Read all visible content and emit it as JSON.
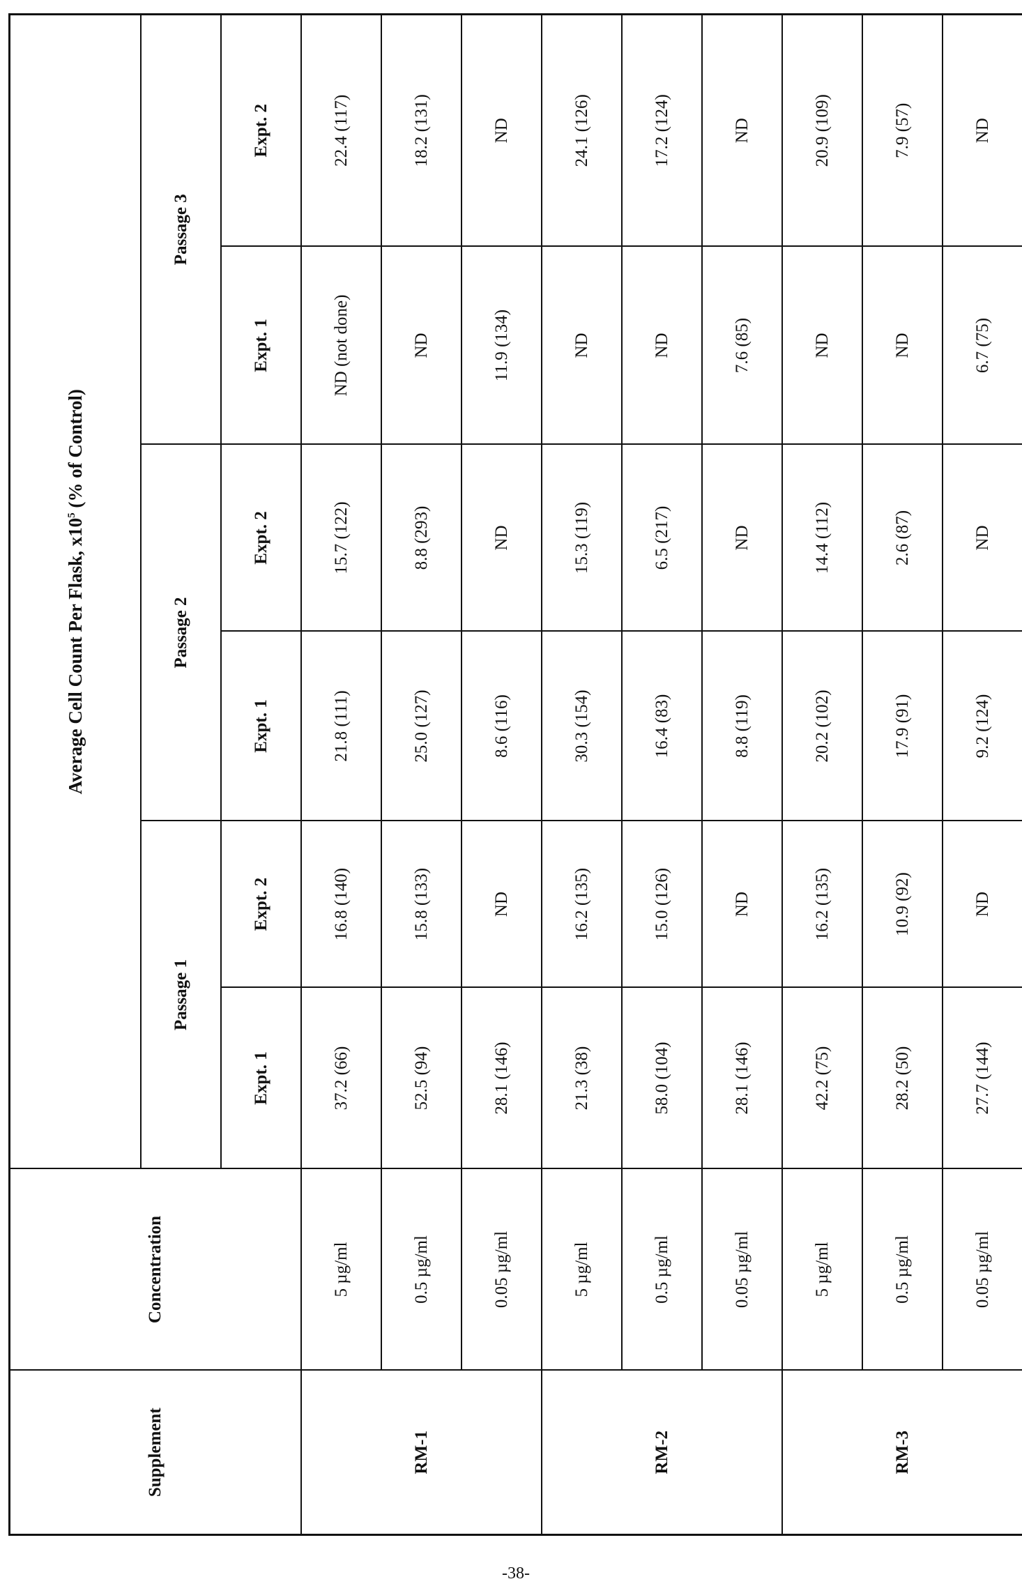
{
  "table": {
    "title": "Average Cell Count Per Flask, x10",
    "title_exp": "5",
    "title_suffix": " (% of Control)",
    "col_supplement": "Supplement",
    "col_concentration": "Concentration",
    "passages": [
      "Passage 1",
      "Passage 2",
      "Passage 3"
    ],
    "expts": [
      "Expt. 1",
      "Expt. 2"
    ],
    "groups": [
      {
        "supplement": "RM-1",
        "rows": [
          {
            "concentration": "5 µg/ml",
            "values": [
              "37.2 (66)",
              "16.8 (140)",
              "21.8 (111)",
              "15.7 (122)",
              "ND (not done)",
              "22.4 (117)"
            ]
          },
          {
            "concentration": "0.5 µg/ml",
            "values": [
              "52.5 (94)",
              "15.8 (133)",
              "25.0 (127)",
              "8.8 (293)",
              "ND",
              "18.2 (131)"
            ]
          },
          {
            "concentration": "0.05 µg/ml",
            "values": [
              "28.1 (146)",
              "ND",
              "8.6 (116)",
              "ND",
              "11.9 (134)",
              "ND"
            ]
          }
        ]
      },
      {
        "supplement": "RM-2",
        "rows": [
          {
            "concentration": "5 µg/ml",
            "values": [
              "21.3 (38)",
              "16.2 (135)",
              "30.3 (154)",
              "15.3 (119)",
              "ND",
              "24.1 (126)"
            ]
          },
          {
            "concentration": "0.5 µg/ml",
            "values": [
              "58.0 (104)",
              "15.0 (126)",
              "16.4 (83)",
              "6.5 (217)",
              "ND",
              "17.2 (124)"
            ]
          },
          {
            "concentration": "0.05 µg/ml",
            "values": [
              "28.1 (146)",
              "ND",
              "8.8 (119)",
              "ND",
              "7.6 (85)",
              "ND"
            ]
          }
        ]
      },
      {
        "supplement": "RM-3",
        "rows": [
          {
            "concentration": "5 µg/ml",
            "values": [
              "42.2 (75)",
              "16.2 (135)",
              "20.2 (102)",
              "14.4 (112)",
              "ND",
              "20.9 (109)"
            ]
          },
          {
            "concentration": "0.5 µg/ml",
            "values": [
              "28.2 (50)",
              "10.9 (92)",
              "17.9 (91)",
              "2.6 (87)",
              "ND",
              "7.9 (57)"
            ]
          },
          {
            "concentration": "0.05 µg/ml",
            "values": [
              "27.7 (144)",
              "ND",
              "9.2 (124)",
              "ND",
              "6.7 (75)",
              "ND"
            ]
          }
        ]
      }
    ]
  },
  "page_number": "-38-"
}
